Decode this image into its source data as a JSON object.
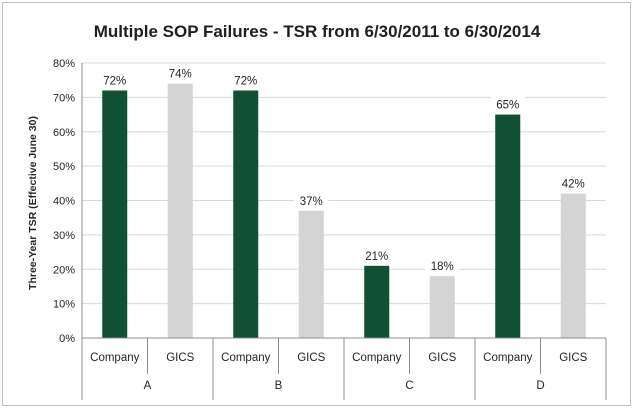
{
  "chart_data": {
    "type": "bar",
    "title": "Multiple SOP Failures - TSR from 6/30/2011 to 6/30/2014",
    "ylabel": "Three-Year TSR (Effective June 30)",
    "xlabel": "",
    "ylim": [
      0,
      80
    ],
    "yticks": [
      "0%",
      "10%",
      "20%",
      "30%",
      "40%",
      "50%",
      "60%",
      "70%",
      "80%"
    ],
    "grid": true,
    "legend": "none",
    "groups": [
      "A",
      "B",
      "C",
      "D"
    ],
    "categories": [
      "Company",
      "GICS"
    ],
    "bars": [
      {
        "group": "A",
        "category": "Company",
        "value": 72,
        "label": "72%"
      },
      {
        "group": "A",
        "category": "GICS",
        "value": 74,
        "label": "74%"
      },
      {
        "group": "B",
        "category": "Company",
        "value": 72,
        "label": "72%"
      },
      {
        "group": "B",
        "category": "GICS",
        "value": 37,
        "label": "37%"
      },
      {
        "group": "C",
        "category": "Company",
        "value": 21,
        "label": "21%"
      },
      {
        "group": "C",
        "category": "GICS",
        "value": 18,
        "label": "18%"
      },
      {
        "group": "D",
        "category": "Company",
        "value": 65,
        "label": "65%"
      },
      {
        "group": "D",
        "category": "GICS",
        "value": 42,
        "label": "42%"
      }
    ],
    "colors": {
      "Company": "#0f5132",
      "GICS": "#d4d4d4",
      "grid": "#d9d9d9",
      "axis": "#8c8c8c"
    }
  }
}
